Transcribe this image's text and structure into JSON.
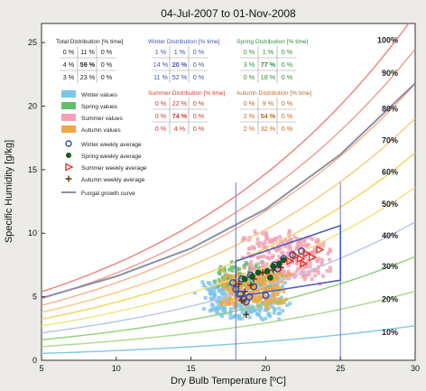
{
  "chart_data": {
    "type": "scatter",
    "title": "04-Jul-2007 to 01-Nov-2008",
    "xlabel": "Dry Bulb Temperature [ºC]",
    "ylabel": "Specific Humidity [g/kg]",
    "xlim": [
      5,
      30
    ],
    "ylim": [
      0,
      26.5
    ],
    "x_ticks": [
      5,
      10,
      15,
      20,
      25,
      30
    ],
    "y_ticks": [
      0,
      5,
      10,
      15,
      20,
      25
    ],
    "grid": false,
    "rh_curves": [
      {
        "label": "10%",
        "rh": 0.1,
        "label_y": 2.2,
        "color": "#7fc9e8"
      },
      {
        "label": "20%",
        "rh": 0.2,
        "label_y": 4.8,
        "color": "#a9d98c"
      },
      {
        "label": "30%",
        "rh": 0.3,
        "label_y": 7.4,
        "color": "#8fd07a"
      },
      {
        "label": "40%",
        "rh": 0.4,
        "label_y": 9.8,
        "color": "#b9c4e6"
      },
      {
        "label": "50%",
        "rh": 0.5,
        "label_y": 12.3,
        "color": "#f2e27a"
      },
      {
        "label": "60%",
        "rh": 0.6,
        "label_y": 14.8,
        "color": "#f4d35c"
      },
      {
        "label": "70%",
        "rh": 0.7,
        "label_y": 17.3,
        "color": "#f7c97d"
      },
      {
        "label": "80%",
        "rh": 0.8,
        "label_y": 19.8,
        "color": "#f6b08a"
      },
      {
        "label": "90%",
        "rh": 0.9,
        "label_y": 22.6,
        "color": "#f29a8c"
      },
      {
        "label": "100%",
        "rh": 1.0,
        "label_y": 25.2,
        "color": "#ee7f7a"
      }
    ],
    "fungal_curve": {
      "x": [
        5,
        10,
        15,
        20,
        25,
        30
      ],
      "y": [
        4.9,
        6.6,
        8.8,
        11.9,
        16.2,
        21.8
      ]
    },
    "comfort_box": {
      "x": [
        18,
        25
      ],
      "y": [
        5.0,
        10.6
      ],
      "color": "#4c5fbf"
    },
    "scatter_groups": [
      {
        "name": "Winter values",
        "color": "#7cc4ea",
        "x_range": [
          15.5,
          21.5
        ],
        "y_range": [
          3.2,
          6.8
        ],
        "n": 260
      },
      {
        "name": "Spring values",
        "color": "#5fbf6a",
        "x_range": [
          16.5,
          21.0
        ],
        "y_range": [
          5.5,
          7.8
        ],
        "n": 120
      },
      {
        "name": "Summer values",
        "color": "#f3a0b2",
        "x_range": [
          18.5,
          24.5
        ],
        "y_range": [
          6.0,
          10.2
        ],
        "n": 260
      },
      {
        "name": "Autumn values",
        "color": "#f0a744",
        "x_range": [
          17.0,
          21.5
        ],
        "y_range": [
          4.0,
          7.0
        ],
        "n": 200
      }
    ],
    "weekly_averages": {
      "winter": [
        [
          17.8,
          6.1
        ],
        [
          18.0,
          5.6
        ],
        [
          18.3,
          5.2
        ],
        [
          18.5,
          4.8
        ],
        [
          18.7,
          4.6
        ],
        [
          18.9,
          5.0
        ],
        [
          19.2,
          5.8
        ],
        [
          20.0,
          5.1
        ],
        [
          18.4,
          6.4
        ],
        [
          19.0,
          6.7
        ],
        [
          20.6,
          7.5
        ],
        [
          21.2,
          8.0
        ],
        [
          21.8,
          8.3
        ],
        [
          22.4,
          8.6
        ],
        [
          20.8,
          7.2
        ]
      ],
      "spring": [
        [
          18.6,
          6.4
        ],
        [
          19.1,
          6.6
        ],
        [
          19.5,
          6.9
        ],
        [
          20.1,
          7.0
        ],
        [
          20.5,
          7.4
        ],
        [
          20.9,
          7.6
        ],
        [
          21.2,
          7.9
        ],
        [
          20.3,
          6.5
        ]
      ],
      "summer": [
        [
          21.6,
          7.8
        ],
        [
          22.0,
          8.2
        ],
        [
          22.3,
          8.0
        ],
        [
          22.7,
          8.4
        ],
        [
          23.1,
          8.1
        ],
        [
          23.6,
          8.7
        ],
        [
          22.5,
          7.6
        ]
      ],
      "autumn": [
        [
          18.2,
          6.0
        ],
        [
          18.6,
          5.4
        ],
        [
          18.4,
          4.7
        ],
        [
          18.7,
          3.6
        ],
        [
          19.2,
          6.4
        ],
        [
          19.8,
          6.9
        ],
        [
          20.5,
          7.1
        ],
        [
          21.0,
          7.3
        ],
        [
          19.0,
          5.9
        ]
      ]
    },
    "legend": {
      "placement": "left",
      "items": [
        {
          "label": "Winter values",
          "kind": "swatch",
          "color": "#7cc4ea"
        },
        {
          "label": "Spring values",
          "kind": "swatch",
          "color": "#5fbf6a"
        },
        {
          "label": "Summer values",
          "kind": "swatch",
          "color": "#f3a0b2"
        },
        {
          "label": "Autumn values",
          "kind": "swatch",
          "color": "#f0a744"
        },
        {
          "label": "Winter weekly average",
          "kind": "circle",
          "color": "#3a45a8"
        },
        {
          "label": "Spring weekly average",
          "kind": "dot",
          "color": "#145a22"
        },
        {
          "label": "Summer weekly average",
          "kind": "triangle",
          "color": "#e03a2a"
        },
        {
          "label": "Autumn weekly average",
          "kind": "plus",
          "color": "#6a2d10"
        },
        {
          "label": "Fungal growth curve",
          "kind": "line",
          "color": "#8a8fa8"
        }
      ]
    },
    "distribution_tables": [
      {
        "title": "Total Distribution [% time]",
        "color": "#222222",
        "rows": [
          [
            "0 %",
            "11 %",
            "0 %"
          ],
          [
            "4 %",
            "59 %",
            "0 %"
          ],
          [
            "3 %",
            "23 %",
            "0 %"
          ]
        ]
      },
      {
        "title": "Winter Distribution [% time]",
        "color": "#3f55b0",
        "rows": [
          [
            "1 %",
            "1 %",
            "0 %"
          ],
          [
            "14 %",
            "20 %",
            "0 %"
          ],
          [
            "11 %",
            "52 %",
            "0 %"
          ]
        ]
      },
      {
        "title": "Spring Distribution [% time]",
        "color": "#2f8f3a",
        "rows": [
          [
            "0 %",
            "1 %",
            "0 %"
          ],
          [
            "3 %",
            "77 %",
            "0 %"
          ],
          [
            "0 %",
            "18 %",
            "0 %"
          ]
        ]
      },
      {
        "title": "Summer Distribution [% time]",
        "color": "#d0392b",
        "rows": [
          [
            "0 %",
            "22 %",
            "0 %"
          ],
          [
            "0 %",
            "74 %",
            "0 %"
          ],
          [
            "0 %",
            "4 %",
            "0 %"
          ]
        ]
      },
      {
        "title": "Autumn Distribution [% time]",
        "color": "#c8681c",
        "rows": [
          [
            "0 %",
            "9 %",
            "0 %"
          ],
          [
            "2 %",
            "54 %",
            "0 %"
          ],
          [
            "2 %",
            "32 %",
            "0 %"
          ]
        ]
      }
    ]
  }
}
